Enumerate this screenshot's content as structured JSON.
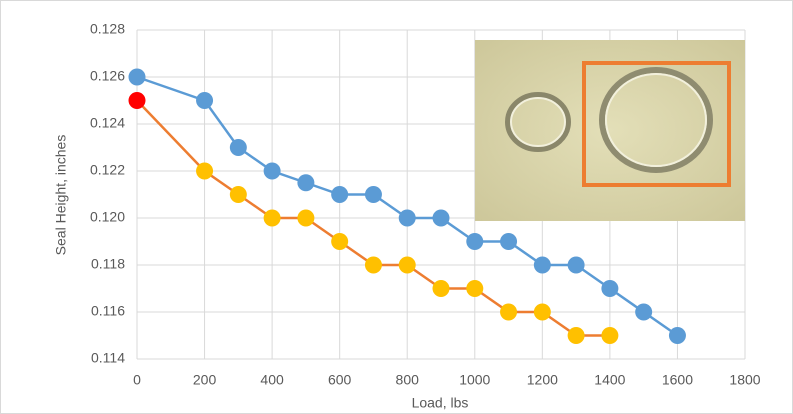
{
  "chart_data": {
    "type": "line",
    "x_label": "Load, lbs",
    "y_label": "Seal Height, inches",
    "xlim": [
      0,
      1800
    ],
    "xticks": [
      0,
      200,
      400,
      600,
      800,
      1000,
      1200,
      1400,
      1600,
      1800
    ],
    "ylim": [
      0.114,
      0.128
    ],
    "yticks": [
      0.114,
      0.116,
      0.118,
      {
        "value": 0.12,
        "label": "0.120"
      },
      0.122,
      0.124,
      0.126,
      0.128
    ],
    "grid": true,
    "series": [
      {
        "color": "#5b9bd5",
        "marker_color": "#5b9bd5",
        "x": [
          0,
          200,
          300,
          400,
          500,
          600,
          700,
          800,
          900,
          1000,
          1100,
          1200,
          1300,
          1400,
          1500,
          1600
        ],
        "values": [
          0.126,
          0.125,
          0.123,
          0.122,
          0.1215,
          0.121,
          0.121,
          0.12,
          0.12,
          0.119,
          0.119,
          0.118,
          0.118,
          0.117,
          0.116,
          0.115
        ]
      },
      {
        "color": "#ed7d31",
        "marker_color": "#ffc000",
        "first_marker_color": "#ff0000",
        "x": [
          0,
          200,
          300,
          400,
          500,
          600,
          700,
          800,
          900,
          1000,
          1100,
          1200,
          1300,
          1400
        ],
        "values": [
          0.125,
          0.122,
          0.121,
          0.12,
          0.12,
          0.119,
          0.118,
          0.118,
          0.117,
          0.117,
          0.116,
          0.116,
          0.115,
          0.115
        ]
      }
    ]
  }
}
